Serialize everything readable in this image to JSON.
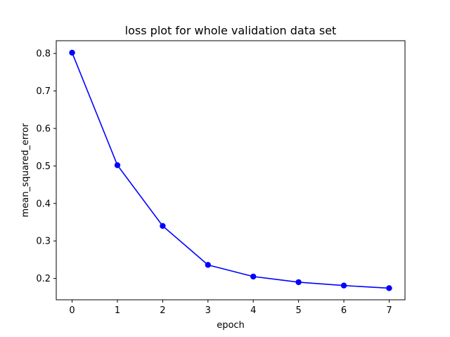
{
  "chart_data": {
    "type": "line",
    "title": "loss plot for whole validation data set",
    "xlabel": "epoch",
    "ylabel": "mean_squared_error",
    "x": [
      0,
      1,
      2,
      3,
      4,
      5,
      6,
      7
    ],
    "series": [
      {
        "values": [
          0.802,
          0.502,
          0.34,
          0.236,
          0.205,
          0.19,
          0.181,
          0.174
        ],
        "color": "#0000ff",
        "marker": "circle"
      }
    ],
    "xlim": [
      -0.35,
      7.35
    ],
    "ylim": [
      0.143,
      0.834
    ],
    "xticks": [
      "0",
      "1",
      "2",
      "3",
      "4",
      "5",
      "6",
      "7"
    ],
    "yticks": [
      "0.2",
      "0.3",
      "0.4",
      "0.5",
      "0.6",
      "0.7",
      "0.8"
    ],
    "grid": false,
    "legend": "none"
  }
}
